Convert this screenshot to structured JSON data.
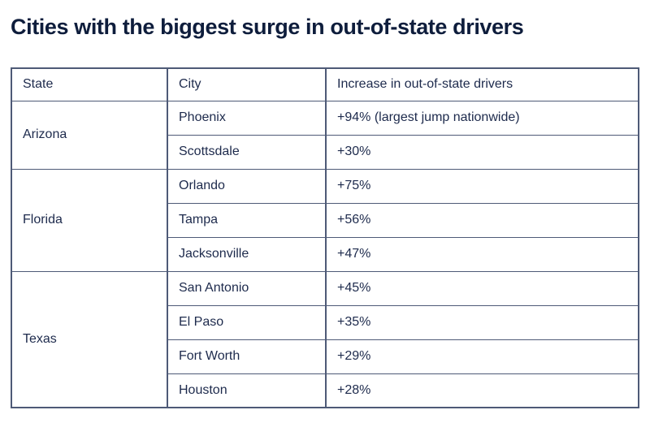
{
  "title": "Cities with the biggest surge in out-of-state drivers",
  "table": {
    "headers": [
      "State",
      "City",
      "Increase in out-of-state drivers"
    ],
    "groups": [
      {
        "state": "Arizona",
        "rows": [
          {
            "city": "Phoenix",
            "increase": "+94% (largest jump nationwide)"
          },
          {
            "city": "Scottsdale",
            "increase": "+30%"
          }
        ]
      },
      {
        "state": "Florida",
        "rows": [
          {
            "city": "Orlando",
            "increase": "+75%"
          },
          {
            "city": "Tampa",
            "increase": "+56%"
          },
          {
            "city": "Jacksonville",
            "increase": "+47%"
          }
        ]
      },
      {
        "state": "Texas",
        "rows": [
          {
            "city": "San Antonio",
            "increase": "+45%"
          },
          {
            "city": "El Paso",
            "increase": "+35%"
          },
          {
            "city": "Fort Worth",
            "increase": "+29%"
          },
          {
            "city": "Houston",
            "increase": "+28%"
          }
        ]
      }
    ]
  },
  "colors": {
    "title_text": "#0e1d3c",
    "body_text": "#1d2a4c",
    "border": "#4e5a77",
    "background": "#ffffff"
  }
}
